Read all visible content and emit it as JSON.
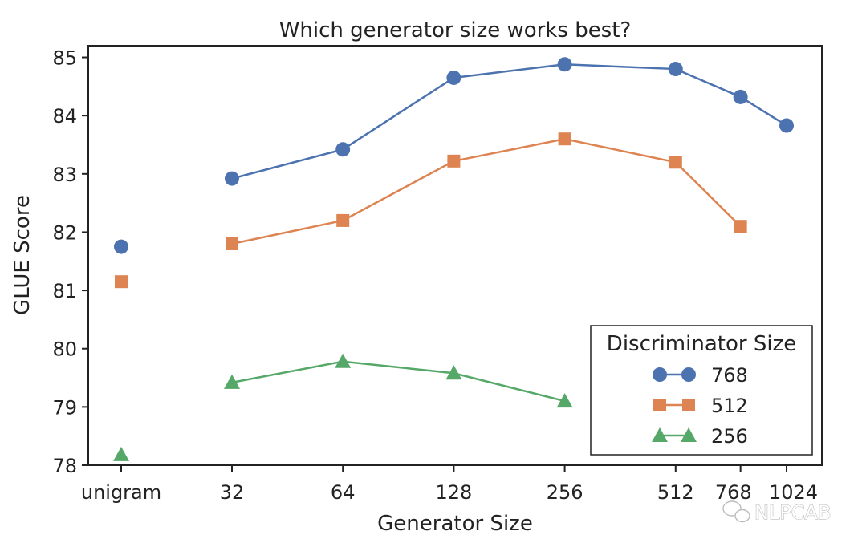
{
  "chart_data": {
    "type": "line",
    "title": "Which generator size works best?",
    "xlabel": "Generator Size",
    "ylabel": "GLUE Score",
    "categories": [
      "unigram",
      "32",
      "64",
      "128",
      "256",
      "512",
      "768",
      "1024"
    ],
    "x_scale": "log2",
    "ylim": [
      78,
      85.2
    ],
    "yticks": [
      78,
      79,
      80,
      81,
      82,
      83,
      84,
      85
    ],
    "grid": false,
    "legend": {
      "title": "Discriminator Size",
      "placement": "lower-right"
    },
    "series": [
      {
        "name": "768",
        "color": "#4c72b0",
        "marker": "circle",
        "values": [
          81.75,
          82.92,
          83.42,
          84.65,
          84.88,
          84.8,
          84.32,
          83.83
        ]
      },
      {
        "name": "512",
        "color": "#dd8452",
        "marker": "square",
        "values": [
          81.15,
          81.8,
          82.2,
          83.22,
          83.6,
          83.2,
          82.1,
          null
        ]
      },
      {
        "name": "256",
        "color": "#55a868",
        "marker": "triangle",
        "values": [
          78.18,
          79.42,
          79.78,
          79.58,
          79.1,
          null,
          null,
          null
        ]
      }
    ]
  },
  "watermark": {
    "text": "NLPCAB",
    "icon": "wechat-icon"
  }
}
